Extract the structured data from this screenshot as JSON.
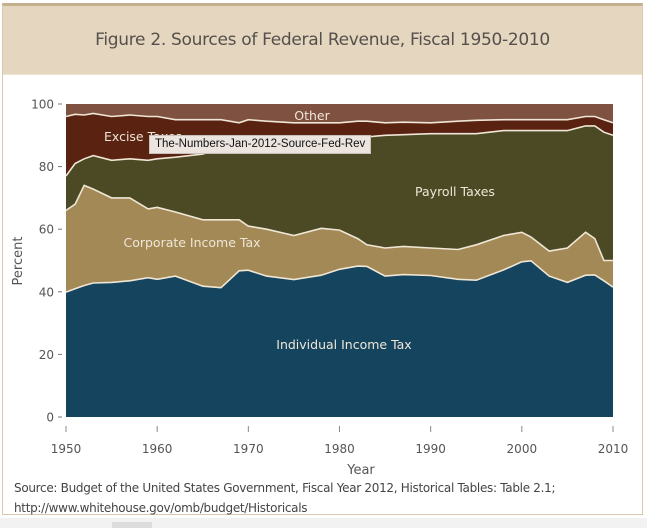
{
  "figure": {
    "title": "Figure 2. Sources of Federal Revenue, Fiscal 1950-2010",
    "tooltip": "The-Numbers-Jan-2012-Source-Fed-Rev",
    "source_line1": "Source: Budget of the United States Government, Fiscal Year 2012, Historical Tables: Table 2.1;",
    "source_line2": "http://www.whitehouse.gov/omb/budget/Historicals"
  },
  "colors": {
    "individual": "#15445e",
    "corporate": "#a38955",
    "payroll": "#4b4a24",
    "excise": "#5a2211",
    "other": "#7e5140",
    "separator": "#efe6d6"
  },
  "chart_data": {
    "type": "area",
    "stacked": true,
    "title": "Figure 2. Sources of Federal Revenue, Fiscal 1950-2010",
    "xlabel": "Year",
    "ylabel": "Percent",
    "xlim": [
      1950,
      2010
    ],
    "ylim": [
      0,
      100
    ],
    "xticks": [
      1950,
      1960,
      1970,
      1980,
      1990,
      2000,
      2010
    ],
    "yticks": [
      0,
      20,
      40,
      60,
      80,
      100
    ],
    "grid": false,
    "legend": "inline labels",
    "x": [
      1950,
      1951,
      1952,
      1953,
      1955,
      1957,
      1959,
      1960,
      1962,
      1965,
      1967,
      1969,
      1970,
      1972,
      1975,
      1978,
      1980,
      1982,
      1983,
      1985,
      1987,
      1990,
      1993,
      1995,
      1998,
      2000,
      2001,
      2003,
      2005,
      2007,
      2008,
      2009,
      2010
    ],
    "series": [
      {
        "name": "Individual Income Tax",
        "label": "Individual Income Tax",
        "values": [
          39.9,
          41.0,
          42.0,
          42.8,
          43.0,
          43.5,
          44.5,
          44.0,
          45.0,
          41.8,
          41.3,
          46.7,
          46.9,
          45.0,
          43.9,
          45.3,
          47.2,
          48.2,
          48.1,
          45.0,
          45.5,
          45.2,
          44.0,
          43.7,
          47.0,
          49.6,
          49.9,
          45.0,
          43.0,
          45.3,
          45.4,
          43.5,
          41.5
        ]
      },
      {
        "name": "Corporate Income Tax",
        "label": "Corporate Income Tax",
        "values": [
          26.1,
          27.0,
          32.0,
          30.0,
          27.0,
          26.5,
          22.0,
          23.0,
          20.5,
          21.2,
          21.7,
          16.3,
          14.1,
          15.0,
          14.1,
          15.0,
          12.5,
          8.8,
          6.9,
          9.0,
          9.0,
          8.8,
          9.5,
          11.3,
          11.0,
          9.4,
          7.6,
          8.0,
          11.0,
          13.7,
          11.6,
          6.5,
          8.5
        ]
      },
      {
        "name": "Payroll Taxes",
        "label": "Payroll Taxes",
        "values": [
          11.0,
          13.0,
          8.5,
          10.7,
          12.0,
          12.5,
          15.5,
          15.5,
          17.5,
          21.0,
          23.0,
          23.0,
          25.0,
          27.0,
          30.0,
          29.2,
          29.8,
          32.5,
          34.5,
          36.0,
          35.7,
          36.5,
          37.0,
          35.5,
          33.5,
          32.5,
          34.0,
          38.5,
          37.5,
          34.0,
          36.0,
          41.0,
          40.0
        ]
      },
      {
        "name": "Excise Taxes",
        "label": "Excise Taxes",
        "values": [
          19.0,
          15.7,
          14.0,
          13.5,
          14.0,
          14.0,
          14.0,
          13.5,
          12.0,
          11.0,
          9.0,
          8.0,
          9.0,
          7.5,
          6.0,
          4.5,
          4.5,
          5.0,
          5.0,
          4.0,
          4.0,
          3.5,
          4.0,
          4.3,
          3.5,
          3.5,
          3.5,
          3.5,
          3.5,
          3.0,
          3.0,
          4.0,
          4.0
        ]
      },
      {
        "name": "Other",
        "label": "Other",
        "values": [
          4.0,
          3.3,
          3.5,
          3.0,
          4.0,
          3.5,
          4.0,
          4.0,
          5.0,
          5.0,
          5.0,
          6.0,
          5.0,
          5.5,
          6.0,
          6.0,
          6.0,
          5.5,
          5.5,
          6.0,
          5.8,
          6.0,
          5.5,
          5.2,
          5.0,
          5.0,
          5.0,
          5.0,
          5.0,
          4.0,
          4.0,
          5.0,
          6.0
        ]
      }
    ]
  }
}
